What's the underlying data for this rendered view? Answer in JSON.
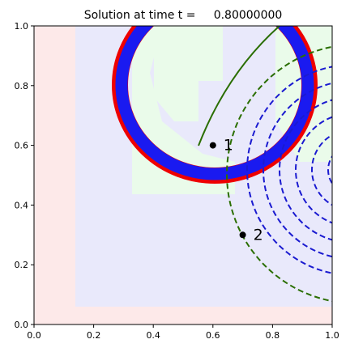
{
  "chart_data": {
    "type": "contour",
    "title": "Solution at time t =     0.80000000",
    "points": [
      {
        "label": "1",
        "x": 0.6,
        "y": 0.6
      },
      {
        "label": "2",
        "x": 0.7,
        "y": 0.3
      }
    ],
    "xlim": [
      0,
      1
    ],
    "ylim": [
      0,
      1
    ],
    "xticks": [
      {
        "value": 0,
        "label": "0.0"
      },
      {
        "value": 0.2,
        "label": "0.2"
      },
      {
        "value": 0.4,
        "label": "0.4"
      },
      {
        "value": 0.6,
        "label": "0.6"
      },
      {
        "value": 0.8,
        "label": "0.8"
      },
      {
        "value": 1,
        "label": "1.0"
      }
    ],
    "yticks": [
      {
        "value": 0,
        "label": "0.0"
      },
      {
        "value": 0.2,
        "label": "0.2"
      },
      {
        "value": 0.4,
        "label": "0.4"
      },
      {
        "value": 0.6,
        "label": "0.6"
      },
      {
        "value": 0.8,
        "label": "0.8"
      },
      {
        "value": 1,
        "label": "1.0"
      }
    ]
  }
}
